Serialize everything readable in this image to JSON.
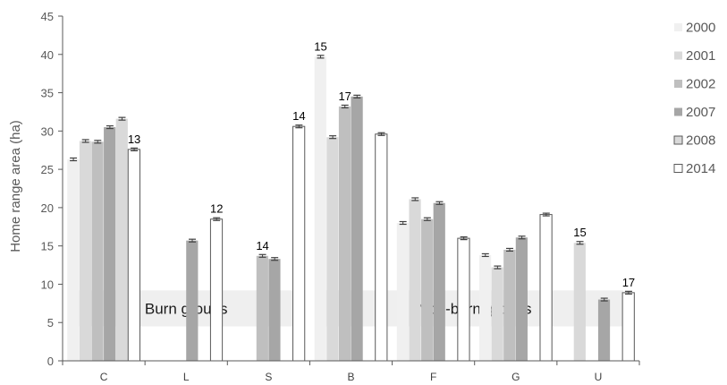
{
  "chart_data": {
    "type": "bar",
    "title": "",
    "xlabel": "",
    "ylabel": "Home range area (ha)",
    "ylim": [
      0,
      45
    ],
    "yticks": [
      0,
      5,
      10,
      15,
      20,
      25,
      30,
      35,
      40,
      45
    ],
    "grid": false,
    "legend_position": "right",
    "categories": [
      "C",
      "L",
      "S",
      "B",
      "F",
      "G",
      "U"
    ],
    "series": [
      {
        "name": "2000",
        "color": "#f0f0f0",
        "values": [
          26.3,
          null,
          null,
          39.7,
          18.0,
          13.8,
          null
        ]
      },
      {
        "name": "2001",
        "color": "#d9d9d9",
        "values": [
          28.7,
          null,
          null,
          29.2,
          21.1,
          12.2,
          15.4
        ]
      },
      {
        "name": "2002",
        "color": "#bfbfbf",
        "values": [
          28.6,
          null,
          13.7,
          33.2,
          18.5,
          14.5,
          null
        ]
      },
      {
        "name": "2007",
        "color": "#a6a6a6",
        "values": [
          30.5,
          15.7,
          13.3,
          34.5,
          20.6,
          16.1,
          8.0
        ]
      },
      {
        "name": "2008",
        "color": "#d9d9d9",
        "values": [
          31.6,
          null,
          null,
          null,
          null,
          null,
          null
        ]
      },
      {
        "name": "2014",
        "color": "#ffffff",
        "values": [
          27.6,
          18.5,
          30.6,
          29.6,
          16.0,
          19.1,
          8.9
        ]
      }
    ],
    "data_labels": [
      {
        "category": "C",
        "series": "2014",
        "text": "13"
      },
      {
        "category": "L",
        "series": "2014",
        "text": "12"
      },
      {
        "category": "S",
        "series": "2002",
        "text": "14"
      },
      {
        "category": "S",
        "series": "2014",
        "text": "14"
      },
      {
        "category": "B",
        "series": "2000",
        "text": "15"
      },
      {
        "category": "B",
        "series": "2002",
        "text": "17"
      },
      {
        "category": "U",
        "series": "2001",
        "text": "15"
      },
      {
        "category": "U",
        "series": "2014",
        "text": "17"
      }
    ],
    "annotations": [
      {
        "text": "Burn groups",
        "y_range": [
          4.5,
          9.2
        ],
        "x_from": "C",
        "x_to": "S"
      },
      {
        "text": "Non-burn groups",
        "y_range": [
          4.5,
          9.2
        ],
        "x_from": "B",
        "x_to": "U"
      }
    ]
  }
}
